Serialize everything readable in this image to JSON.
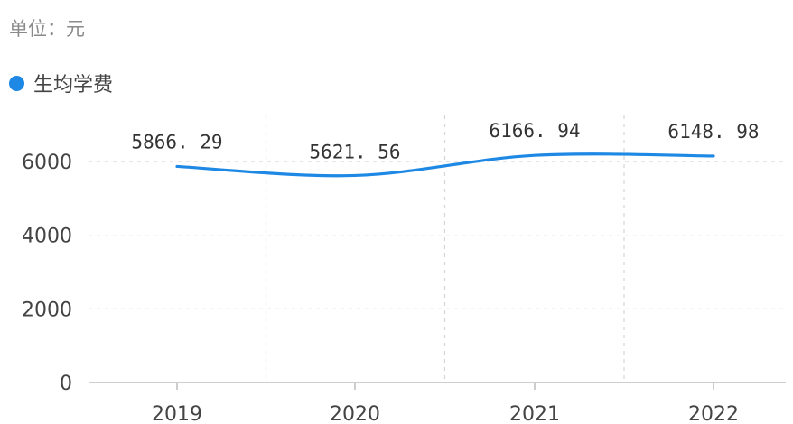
{
  "unit_label": "单位：元",
  "legend": {
    "label": "生均学费",
    "color": "#1e88e5"
  },
  "chart_data": {
    "type": "line",
    "categories": [
      "2019",
      "2020",
      "2021",
      "2022"
    ],
    "series": [
      {
        "name": "生均学费",
        "values": [
          5866.29,
          5621.56,
          6166.94,
          6148.98
        ],
        "color": "#1e88e5"
      }
    ],
    "data_labels": [
      "5866. 29",
      "5621. 56",
      "6166. 94",
      "6148. 98"
    ],
    "yticks": [
      0,
      2000,
      4000,
      6000
    ],
    "ylim": [
      0,
      7000
    ],
    "grid": true,
    "legend_position": "top-left",
    "smooth": true
  }
}
